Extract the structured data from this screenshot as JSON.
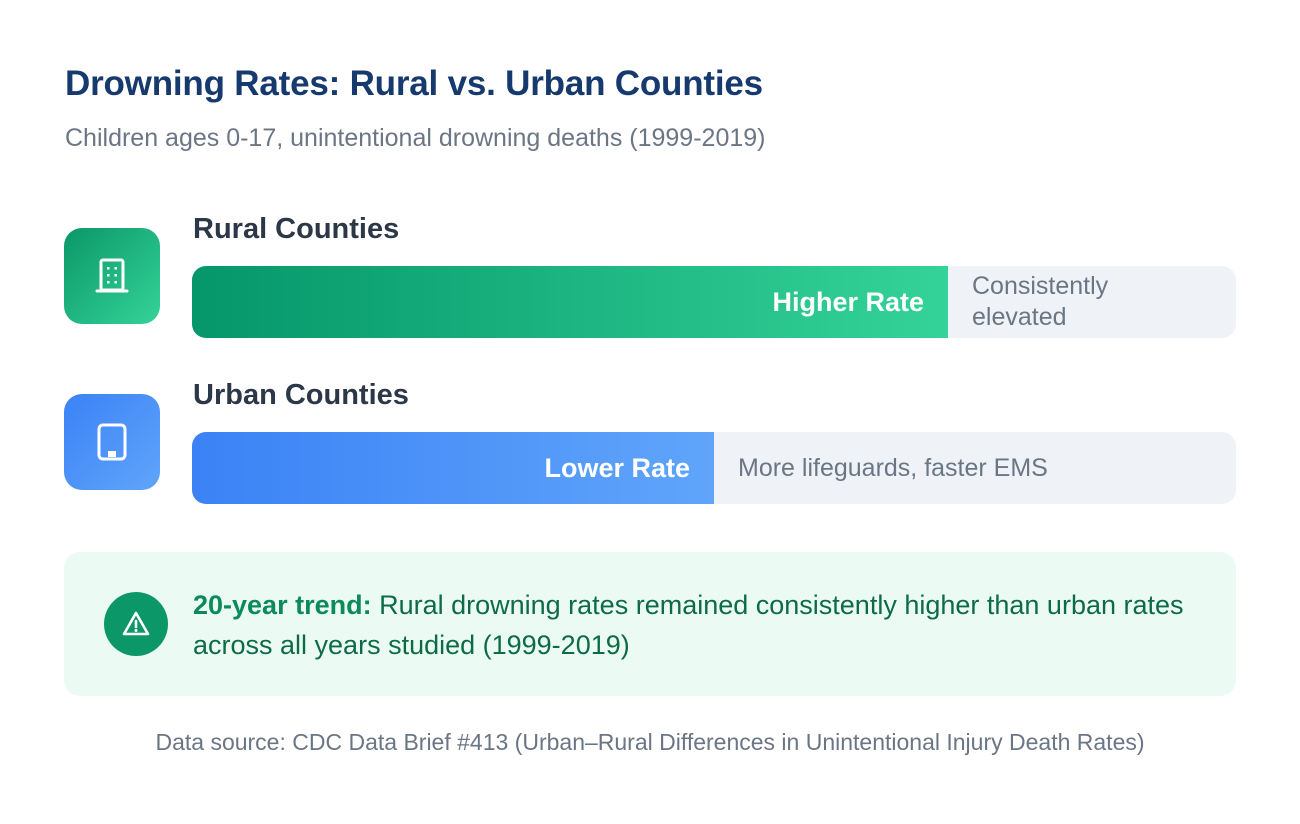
{
  "title": "Drowning Rates: Rural vs. Urban Counties",
  "subtitle": "Children ages 0-17, unintentional drowning deaths (1999-2019)",
  "colors": {
    "title": "#163a6e",
    "rural_start": "#059669",
    "rural_end": "#34d399",
    "urban_start": "#3b82f6",
    "urban_end": "#60a5fa",
    "callout_bg": "#ebfbf3"
  },
  "chart_data": {
    "type": "bar",
    "orientation": "horizontal",
    "categories": [
      "Rural Counties",
      "Urban Counties"
    ],
    "values": [
      0.724,
      0.5
    ],
    "value_scale": "relative fraction of full track (no numeric values shown)",
    "bar_labels": [
      "Higher Rate",
      "Lower Rate"
    ],
    "notes": [
      "Consistently elevated",
      "More lifeguards, faster EMS"
    ],
    "icons": [
      "building-icon",
      "phone-icon"
    ]
  },
  "callout": {
    "icon": "warning-triangle-icon",
    "lead": "20-year trend:",
    "text": " Rural drowning rates remained consistently higher than urban rates across all years studied (1999-2019)"
  },
  "source": "Data source: CDC Data Brief #413 (Urban–Rural Differences in Unintentional Injury Death Rates)"
}
